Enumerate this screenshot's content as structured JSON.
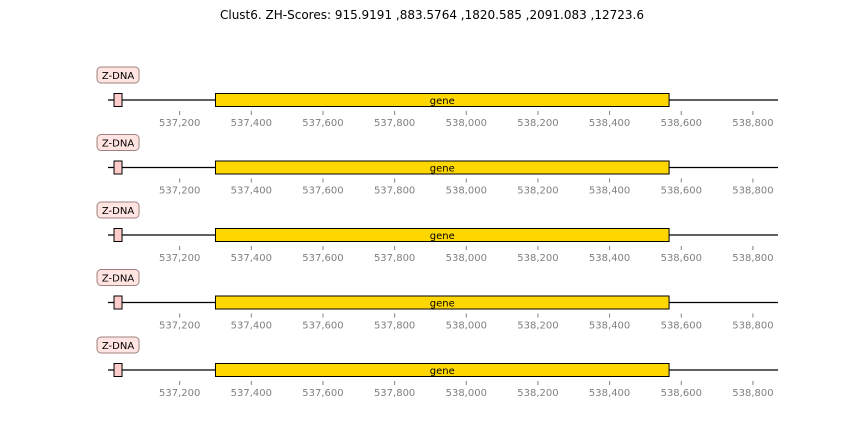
{
  "figure": {
    "title": "Clust6. ZH-Scores: 915.9191 ,883.5764 ,1820.585 ,2091.083 ,12723.6"
  },
  "chart_data": {
    "type": "genome-feature-track",
    "x_range": [
      537000,
      538870
    ],
    "ticks": [
      537200,
      537400,
      537600,
      537800,
      538000,
      538200,
      538400,
      538600,
      538800
    ],
    "tick_labels": [
      "537,200",
      "537,400",
      "537,600",
      "537,800",
      "538,000",
      "538,200",
      "538,400",
      "538,600",
      "538,800"
    ],
    "tracks": [
      {
        "features": [
          {
            "kind": "zdna",
            "label": "Z-DNA",
            "start": 537016,
            "end": 537040,
            "color": "#ffcccc"
          },
          {
            "kind": "gene",
            "label": "gene",
            "start": 537300,
            "end": 538566,
            "color": "#ffd700"
          }
        ]
      },
      {
        "features": [
          {
            "kind": "zdna",
            "label": "Z-DNA",
            "start": 537016,
            "end": 537040,
            "color": "#ffcccc"
          },
          {
            "kind": "gene",
            "label": "gene",
            "start": 537300,
            "end": 538566,
            "color": "#ffd700"
          }
        ]
      },
      {
        "features": [
          {
            "kind": "zdna",
            "label": "Z-DNA",
            "start": 537016,
            "end": 537040,
            "color": "#ffcccc"
          },
          {
            "kind": "gene",
            "label": "gene",
            "start": 537300,
            "end": 538566,
            "color": "#ffd700"
          }
        ]
      },
      {
        "features": [
          {
            "kind": "zdna",
            "label": "Z-DNA",
            "start": 537016,
            "end": 537040,
            "color": "#ffcccc"
          },
          {
            "kind": "gene",
            "label": "gene",
            "start": 537300,
            "end": 538566,
            "color": "#ffd700"
          }
        ]
      },
      {
        "features": [
          {
            "kind": "zdna",
            "label": "Z-DNA",
            "start": 537016,
            "end": 537040,
            "color": "#ffcccc"
          },
          {
            "kind": "gene",
            "label": "gene",
            "start": 537300,
            "end": 538566,
            "color": "#ffd700"
          }
        ]
      }
    ]
  }
}
